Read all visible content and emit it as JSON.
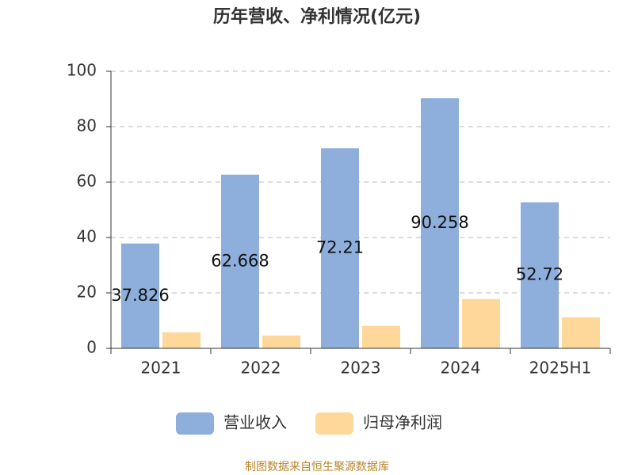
{
  "chart_data": {
    "type": "bar",
    "title": "历年营收、净利情况(亿元)",
    "categories": [
      "2021",
      "2022",
      "2023",
      "2024",
      "2025H1"
    ],
    "series": [
      {
        "name": "营业收入",
        "color": "#8eaedb",
        "values": [
          37.826,
          62.668,
          72.21,
          90.258,
          52.72
        ],
        "labels": true
      },
      {
        "name": "归母净利润",
        "color": "#fdd89a",
        "values": [
          5.8,
          4.6,
          8.1,
          17.8,
          11.2
        ],
        "labels": false
      }
    ],
    "ylim": [
      0,
      100
    ],
    "yticks": [
      0,
      20,
      40,
      60,
      80,
      100
    ],
    "grid": true,
    "legend": "bottom",
    "source": "制图数据来自恒生聚源数据库"
  }
}
